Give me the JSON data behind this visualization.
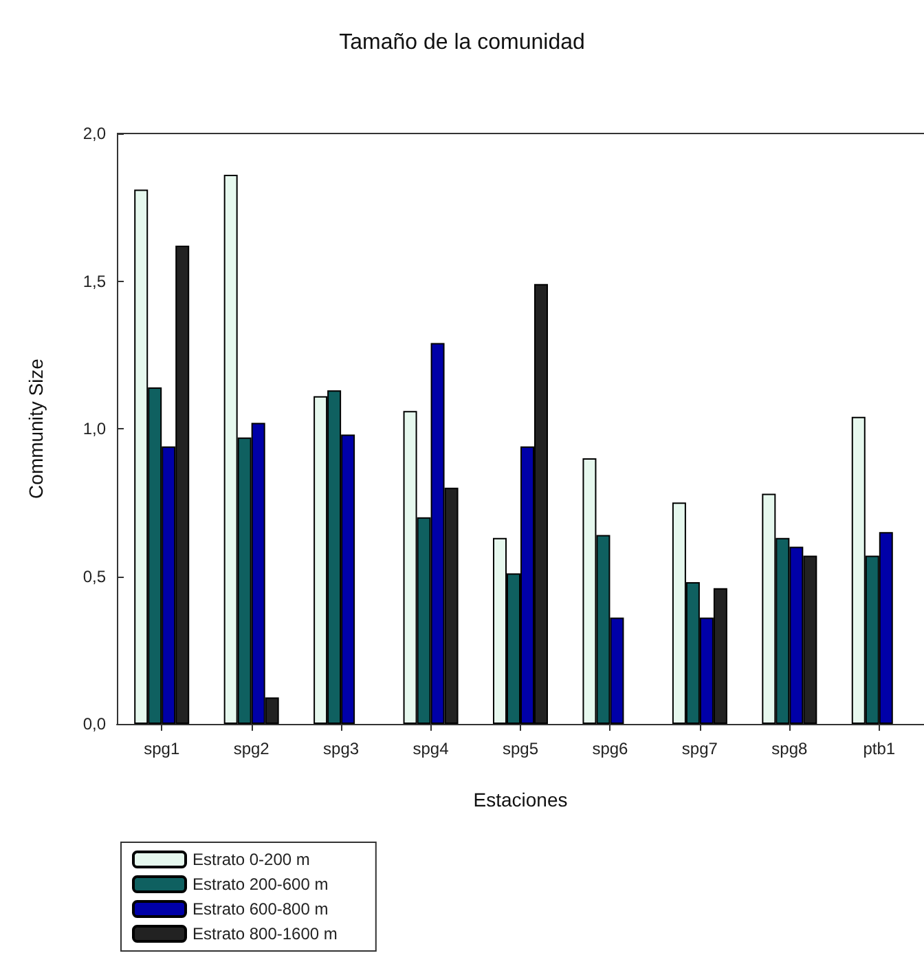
{
  "chart_data": {
    "type": "bar",
    "title": "Tamaño de la comunidad",
    "xlabel": "Estaciones",
    "ylabel": "Community Size",
    "categories": [
      "spg1",
      "spg2",
      "spg3",
      "spg4",
      "spg5",
      "spg6",
      "spg7",
      "spg8",
      "ptb1"
    ],
    "series": [
      {
        "name": "Estrato 0-200 m",
        "color": "#e6f8ee",
        "values": [
          1.81,
          1.86,
          1.11,
          1.06,
          0.63,
          0.9,
          0.75,
          0.78,
          1.04
        ]
      },
      {
        "name": "Estrato 200-600 m",
        "color": "#0f6060",
        "values": [
          1.14,
          0.97,
          1.13,
          0.7,
          0.51,
          0.64,
          0.48,
          0.63,
          0.57
        ]
      },
      {
        "name": "Estrato 600-800 m",
        "color": "#0000a8",
        "values": [
          0.94,
          1.02,
          0.98,
          1.29,
          0.94,
          0.36,
          0.36,
          0.6,
          0.65
        ]
      },
      {
        "name": "Estrato 800-1600 m",
        "color": "#222222",
        "values": [
          1.62,
          0.09,
          null,
          0.8,
          1.49,
          null,
          0.46,
          0.57,
          null
        ]
      }
    ],
    "ylim": [
      0,
      2
    ],
    "yticks": [
      {
        "value": 0,
        "label": "0,0"
      },
      {
        "value": 0.5,
        "label": "0,5"
      },
      {
        "value": 1,
        "label": "1,0"
      },
      {
        "value": 1.5,
        "label": "1,5"
      },
      {
        "value": 2,
        "label": "2,0"
      }
    ],
    "grid": false,
    "legend": "bottom left"
  }
}
